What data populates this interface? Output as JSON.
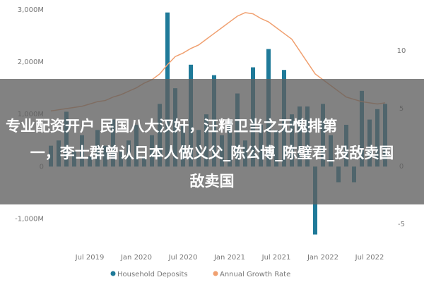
{
  "chart_data": {
    "type": "bar-line",
    "categories": [
      null,
      null,
      null,
      null,
      null,
      "Jul 2019",
      null,
      null,
      null,
      null,
      null,
      "Jan 2020",
      null,
      null,
      null,
      null,
      null,
      "Jul 2020",
      null,
      null,
      null,
      null,
      null,
      "Jan 2021",
      null,
      null,
      null,
      null,
      null,
      "Jul 2021",
      null,
      null,
      null,
      null,
      null,
      "Jan 2022",
      null,
      null,
      null,
      null,
      null,
      "Jul 2022",
      null,
      null
    ],
    "series": [
      {
        "name": "Household Deposits",
        "color": "#1f7a99",
        "values": [
          400,
          500,
          1050,
          300,
          600,
          200,
          700,
          400,
          900,
          300,
          500,
          800,
          200,
          600,
          1200,
          2950,
          1500,
          800,
          1950,
          700,
          1000,
          1750,
          600,
          900,
          1400,
          500,
          1900,
          800,
          2250,
          700,
          1850,
          1000,
          1150,
          1150,
          -1300,
          1200,
          600,
          -300,
          800,
          -300,
          1450,
          900,
          1100,
          1200
        ]
      },
      {
        "name": "Annual Growth Rate",
        "color": "#f0a070",
        "axis": "y2",
        "values": [
          4.8,
          4.9,
          5.0,
          5.1,
          5.2,
          5.4,
          5.6,
          5.7,
          6.0,
          6.2,
          6.5,
          6.8,
          7.2,
          7.5,
          8.0,
          8.8,
          9.5,
          9.8,
          10.2,
          10.5,
          11.0,
          11.5,
          12.0,
          12.5,
          13.0,
          13.3,
          13.2,
          12.8,
          12.5,
          12.0,
          11.5,
          11.0,
          10.0,
          9.0,
          8.0,
          7.5,
          7.0,
          6.5,
          6.0,
          5.8,
          5.6,
          5.5,
          5.4,
          5.5
        ]
      }
    ],
    "ylim": [
      -1400,
      3000
    ],
    "yticks": [
      {
        "value": -1000,
        "label": "-1,000M"
      },
      0,
      {
        "value": 1000,
        "label": "1,000M"
      },
      {
        "value": 2000,
        "label": "2,000M"
      },
      {
        "value": 3000,
        "label": "3,000M"
      }
    ],
    "y2lim": [
      -6.34,
      13.54
    ],
    "y2ticks": [
      -5,
      0,
      5,
      10
    ],
    "grid": false,
    "legend": "bottom"
  },
  "overlay": {
    "lines": [
      "专业配资开户 民国八大汉奸，汪精卫当之无愧排第",
      "一，李士群曾认日本人做义父_陈公博_陈璧君_投敌卖国",
      "敌卖国"
    ]
  }
}
